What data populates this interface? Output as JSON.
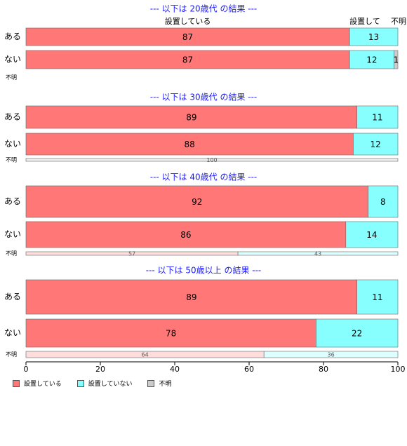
{
  "chart_data": {
    "type": "bar",
    "orientation": "horizontal-stacked-percent",
    "xlim": [
      0,
      100
    ],
    "xticks": [
      "0",
      "20",
      "40",
      "60",
      "80",
      "100"
    ],
    "grid": false,
    "legend_position": "bottom-left",
    "series_names": [
      "設置している",
      "設置していない",
      "不明"
    ],
    "colors": [
      "#ff7777",
      "#88ffff",
      "#cccccc"
    ],
    "header_labels": {
      "series_0": "設置している",
      "series_1": "設置して",
      "series_2": "不明"
    },
    "panels": [
      {
        "title": "--- 以下は 20歳代 の結果 ---",
        "rows": [
          {
            "label": "ある",
            "values": [
              87,
              13,
              0
            ],
            "labels": [
              "87",
              "13",
              ""
            ]
          },
          {
            "label": "ない",
            "values": [
              87,
              12,
              1
            ],
            "labels": [
              "87",
              "12",
              "1"
            ]
          },
          {
            "label": "不明",
            "values": [
              0,
              0,
              0
            ],
            "labels": [
              "",
              "",
              ""
            ]
          }
        ]
      },
      {
        "title": "--- 以下は 30歳代 の結果 ---",
        "rows": [
          {
            "label": "ある",
            "values": [
              89,
              11,
              0
            ],
            "labels": [
              "89",
              "11",
              ""
            ]
          },
          {
            "label": "ない",
            "values": [
              88,
              12,
              0
            ],
            "labels": [
              "88",
              "12",
              ""
            ]
          },
          {
            "label": "不明",
            "values": [
              0,
              0,
              100
            ],
            "labels": [
              "",
              "",
              "100"
            ]
          }
        ]
      },
      {
        "title": "--- 以下は 40歳代 の結果 ---",
        "rows": [
          {
            "label": "ある",
            "values": [
              92,
              8,
              0
            ],
            "labels": [
              "92",
              "8",
              ""
            ]
          },
          {
            "label": "ない",
            "values": [
              86,
              14,
              0
            ],
            "labels": [
              "86",
              "14",
              ""
            ]
          },
          {
            "label": "不明",
            "values": [
              57,
              43,
              0
            ],
            "labels": [
              "57",
              "43",
              ""
            ]
          }
        ]
      },
      {
        "title": "--- 以下は 50歳以上 の結果 ---",
        "rows": [
          {
            "label": "ある",
            "values": [
              89,
              11,
              0
            ],
            "labels": [
              "89",
              "11",
              ""
            ]
          },
          {
            "label": "ない",
            "values": [
              78,
              22,
              0
            ],
            "labels": [
              "78",
              "22",
              ""
            ]
          },
          {
            "label": "不明",
            "values": [
              64,
              36,
              0
            ],
            "labels": [
              "64",
              "36",
              ""
            ]
          }
        ]
      }
    ]
  }
}
